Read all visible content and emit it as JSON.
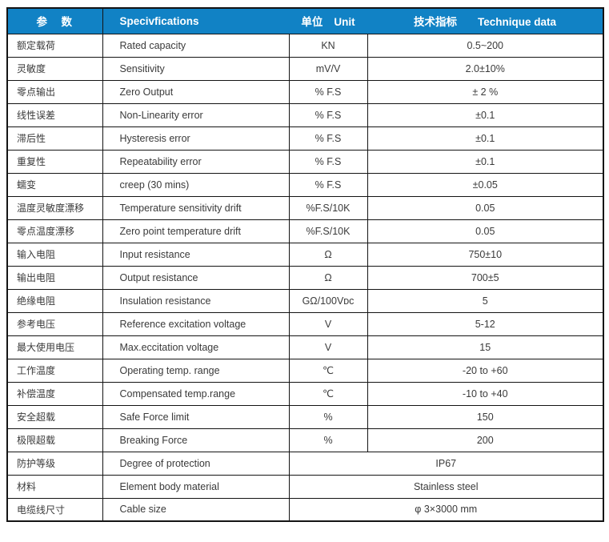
{
  "colors": {
    "header_bg": "#1182C5",
    "header_text": "#FFFFFF",
    "border": "#141414",
    "body_text": "#3A3A3A"
  },
  "table": {
    "header": {
      "param_zh": "参　数",
      "spec_en": "Specivfications",
      "unit_zh": "单位",
      "unit_en": "Unit",
      "tech_zh": "技术指标",
      "tech_en": "Technique data"
    },
    "rows": [
      {
        "param": "额定载荷",
        "spec": "Rated capacity",
        "unit": "KN",
        "value": "0.5~200",
        "merged": false
      },
      {
        "param": "灵敏度",
        "spec": "Sensitivity",
        "unit": "mV/V",
        "value": "2.0±10%",
        "merged": false
      },
      {
        "param": "零点输出",
        "spec": "Zero Output",
        "unit": "% F.S",
        "value": "± 2 %",
        "merged": false
      },
      {
        "param": "线性误差",
        "spec": "Non-Linearity error",
        "unit": "% F.S",
        "value": "±0.1",
        "merged": false
      },
      {
        "param": "滞后性",
        "spec": "Hysteresis error",
        "unit": "% F.S",
        "value": "±0.1",
        "merged": false
      },
      {
        "param": "重复性",
        "spec": "Repeatability error",
        "unit": "% F.S",
        "value": "±0.1",
        "merged": false
      },
      {
        "param": "蠕变",
        "spec": "creep (30 mins)",
        "unit": "% F.S",
        "value": "±0.05",
        "merged": false
      },
      {
        "param": "温度灵敏度漂移",
        "spec": "Temperature sensitivity drift",
        "unit": "%F.S/10K",
        "value": "0.05",
        "merged": false
      },
      {
        "param": "零点温度漂移",
        "spec": "Zero point temperature drift",
        "unit": "%F.S/10K",
        "value": "0.05",
        "merged": false
      },
      {
        "param": "输入电阻",
        "spec": "Input resistance",
        "unit": "Ω",
        "value": "750±10",
        "merged": false
      },
      {
        "param": "输出电阻",
        "spec": "Output resistance",
        "unit": "Ω",
        "value": "700±5",
        "merged": false
      },
      {
        "param": "绝缘电阻",
        "spec": "Insulation resistance",
        "unit": "GΩ/100Vᴅᴄ",
        "value": "5",
        "merged": false
      },
      {
        "param": "参考电压",
        "spec": "Reference excitation voltage",
        "unit": "V",
        "value": "5-12",
        "merged": false
      },
      {
        "param": "最大使用电压",
        "spec": "Max.eccitation voltage",
        "unit": "V",
        "value": "15",
        "merged": false
      },
      {
        "param": "工作温度",
        "spec": "Operating temp. range",
        "unit": "℃",
        "value": "-20 to +60",
        "merged": false
      },
      {
        "param": "补偿温度",
        "spec": "Compensated temp.range",
        "unit": "℃",
        "value": "-10 to +40",
        "merged": false
      },
      {
        "param": "安全超载",
        "spec": "Safe Force limit",
        "unit": "%",
        "value": "150",
        "merged": false
      },
      {
        "param": "极限超载",
        "spec": "Breaking Force",
        "unit": "%",
        "value": "200",
        "merged": false
      },
      {
        "param": "防护等级",
        "spec": "Degree of protection",
        "unit": null,
        "value": "IP67",
        "merged": true
      },
      {
        "param": "材料",
        "spec": "Element body material",
        "unit": null,
        "value": "Stainless steel",
        "merged": true
      },
      {
        "param": "电缆线尺寸",
        "spec": "Cable size",
        "unit": null,
        "value": "φ 3×3000 mm",
        "merged": true
      }
    ]
  }
}
